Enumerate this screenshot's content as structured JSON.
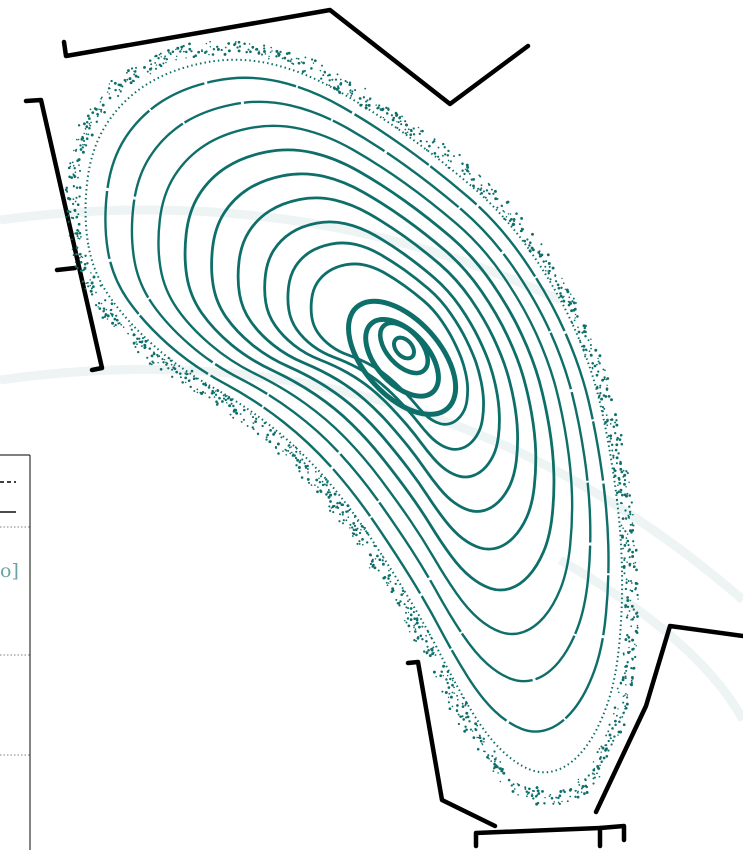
{
  "figure": {
    "background_color": "#ffffff",
    "surface_color": "#0e6f6a",
    "wall_color": "#000000",
    "faint_arc_color": "#eef4f4",
    "panel_text_color": "#6aa3a6"
  },
  "overlay_panel": {
    "visible_text": "o]"
  },
  "poincare_plot": {
    "description_shown": false,
    "closed_surface_count": 12,
    "island_rings": 3,
    "chaotic_edge": true
  }
}
